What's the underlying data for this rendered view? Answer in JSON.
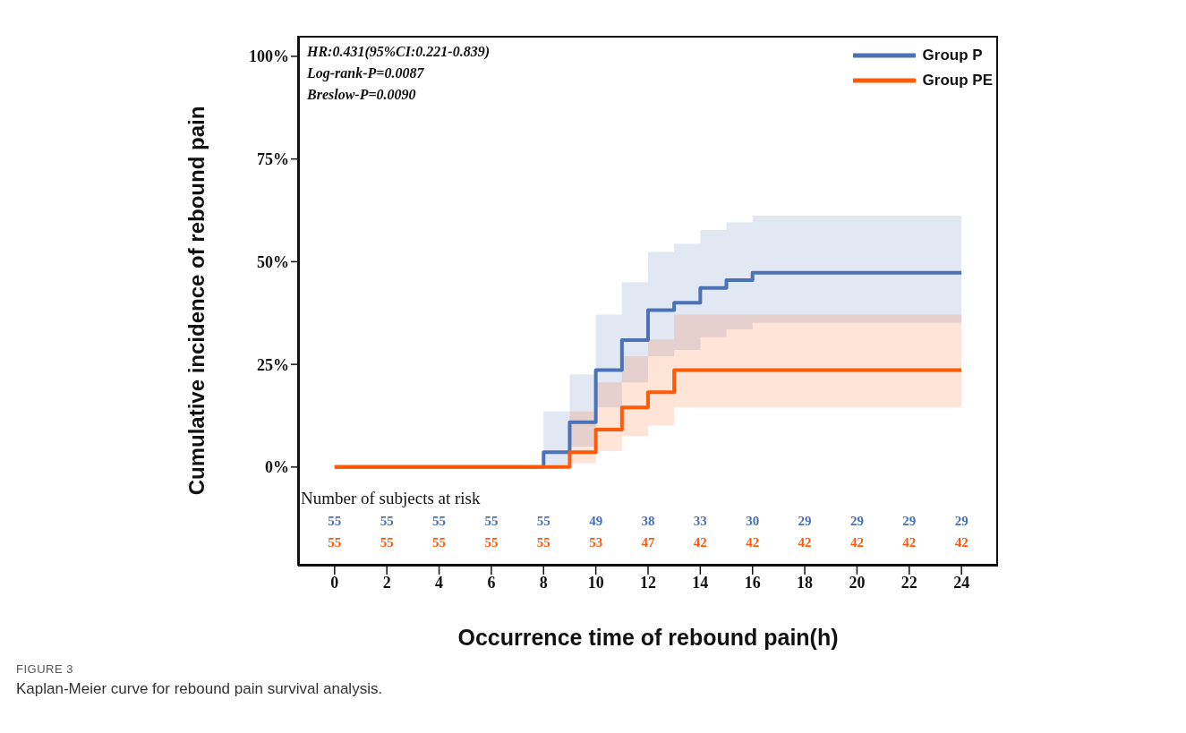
{
  "chart_data": {
    "type": "step",
    "title": "FIGURE 3",
    "subtitle": "Kaplan-Meier curve for rebound pain survival analysis.",
    "xlabel": "Occurrence time of rebound pain(h)",
    "ylabel": "Cumulative incidence of rebound pain",
    "xlim": [
      -1.4,
      25.4
    ],
    "xticks": [
      0,
      2,
      4,
      6,
      8,
      10,
      12,
      14,
      16,
      18,
      20,
      22,
      24
    ],
    "ylim": [
      -24,
      105
    ],
    "yticks": [
      {
        "value": 0,
        "label": "0%"
      },
      {
        "value": 25,
        "label": "25%"
      },
      {
        "value": 50,
        "label": "50%"
      },
      {
        "value": 75,
        "label": "75%"
      },
      {
        "value": 100,
        "label": "100%"
      }
    ],
    "grid": false,
    "legend": "top right",
    "line_style": "solid",
    "series": [
      {
        "name": "Group P",
        "color": "#4a72b5",
        "x": [
          0,
          8,
          9,
          10,
          11,
          12,
          13,
          14,
          15,
          16,
          24
        ],
        "values": [
          0,
          3.6,
          10.9,
          23.6,
          30.9,
          38.2,
          40,
          43.6,
          45.5,
          47.3,
          47.3
        ],
        "lower": [
          null,
          0,
          5,
          14.5,
          20.6,
          27,
          28.5,
          31.6,
          33.5,
          35.1,
          35.1
        ],
        "upper": [
          null,
          13.6,
          22.6,
          37.1,
          45,
          52.4,
          54.4,
          57.7,
          59.6,
          61.2,
          61.2
        ]
      },
      {
        "name": "Group PE",
        "color": "#ff5a0a",
        "x": [
          0,
          9,
          10,
          11,
          12,
          13,
          24
        ],
        "values": [
          0,
          3.6,
          9.1,
          14.5,
          18.2,
          23.6,
          23.6
        ],
        "lower": [
          null,
          0.9,
          3.9,
          7.5,
          10.1,
          14.5,
          14.5
        ],
        "upper": [
          null,
          13.6,
          20.6,
          27,
          31.1,
          37.1,
          37.1
        ]
      }
    ],
    "annotations": [
      "HR:0.431(95%CI:0.221-0.839)",
      "Log-rank-P=0.0087",
      "Breslow-P=0.0090",
      "Number of subjects at risk",
      "55",
      "55",
      "55",
      "55",
      "55",
      "49",
      "38",
      "33",
      "30",
      "29",
      "29",
      "29",
      "29",
      "55",
      "55",
      "55",
      "55",
      "55",
      "53",
      "47",
      "42",
      "42",
      "42",
      "42",
      "42",
      "42"
    ]
  }
}
